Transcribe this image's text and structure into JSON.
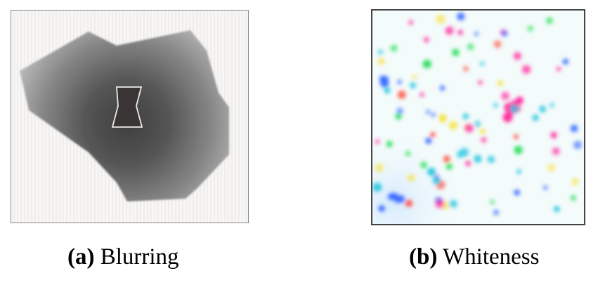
{
  "figure": {
    "panel_a": {
      "tag": "(a)",
      "label": "Blurring"
    },
    "panel_b": {
      "tag": "(b)",
      "label": "Whiteness",
      "dot_colors": [
        "#ff2fa0",
        "#27e05a",
        "#3a6cff",
        "#f7e13a",
        "#ff4a3a",
        "#25c6e0"
      ]
    }
  }
}
